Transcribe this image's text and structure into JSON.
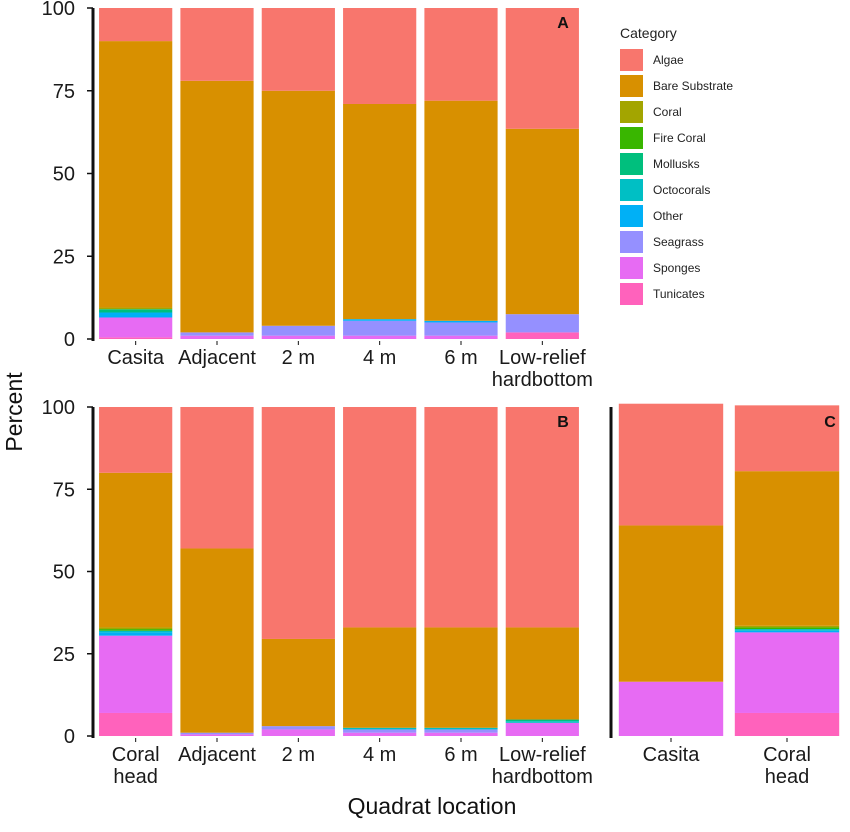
{
  "xlabel": "Quadrat location",
  "ylabel": "Percent",
  "legend": {
    "title": "Category",
    "entries": [
      {
        "name": "Algae",
        "color": "#F8766D"
      },
      {
        "name": "Bare Substrate",
        "color": "#D89000"
      },
      {
        "name": "Coral",
        "color": "#A3A500"
      },
      {
        "name": "Fire Coral",
        "color": "#39B600"
      },
      {
        "name": "Mollusks",
        "color": "#00BF7D"
      },
      {
        "name": "Octocorals",
        "color": "#00BFC4"
      },
      {
        "name": "Other",
        "color": "#00B0F6"
      },
      {
        "name": "Seagrass",
        "color": "#9590FF"
      },
      {
        "name": "Sponges",
        "color": "#E76BF3"
      },
      {
        "name": "Tunicates",
        "color": "#FF62BC"
      }
    ]
  },
  "chart_data": [
    {
      "type": "bar",
      "stacked": true,
      "panel": "A",
      "ylim": [
        0,
        100
      ],
      "yticks": [
        0,
        25,
        50,
        75,
        100
      ],
      "categories": [
        [
          "Casita"
        ],
        [
          "Adjacent"
        ],
        [
          "2 m"
        ],
        [
          "4 m"
        ],
        [
          "6 m"
        ],
        [
          "Low-relief",
          "hardbottom"
        ]
      ],
      "series": [
        {
          "name": "Tunicates",
          "values": [
            0.5,
            0,
            0,
            0,
            0,
            2
          ]
        },
        {
          "name": "Sponges",
          "values": [
            6,
            1,
            1,
            1,
            1,
            0
          ]
        },
        {
          "name": "Seagrass",
          "values": [
            0,
            1,
            3,
            4.5,
            4,
            5.5
          ]
        },
        {
          "name": "Other",
          "values": [
            1.5,
            0,
            0,
            0.5,
            0.5,
            0
          ]
        },
        {
          "name": "Octocorals",
          "values": [
            0,
            0,
            0,
            0,
            0,
            0
          ]
        },
        {
          "name": "Mollusks",
          "values": [
            1,
            0,
            0,
            0,
            0,
            0
          ]
        },
        {
          "name": "Fire Coral",
          "values": [
            0,
            0,
            0,
            0,
            0,
            0
          ]
        },
        {
          "name": "Coral",
          "values": [
            0.5,
            0,
            0,
            0,
            0,
            0
          ]
        },
        {
          "name": "Bare Substrate",
          "values": [
            80.5,
            76,
            71,
            65,
            66.5,
            56
          ]
        },
        {
          "name": "Algae",
          "values": [
            10,
            22,
            25,
            29,
            28,
            36.5
          ]
        }
      ]
    },
    {
      "type": "bar",
      "stacked": true,
      "panel": "B",
      "ylim": [
        0,
        100
      ],
      "yticks": [
        0,
        25,
        50,
        75,
        100
      ],
      "categories": [
        [
          "Coral",
          "head"
        ],
        [
          "Adjacent"
        ],
        [
          "2 m"
        ],
        [
          "4 m"
        ],
        [
          "6 m"
        ],
        [
          "Low-relief",
          "hardbottom"
        ]
      ],
      "series": [
        {
          "name": "Tunicates",
          "values": [
            7,
            0,
            0,
            0,
            0,
            0
          ]
        },
        {
          "name": "Sponges",
          "values": [
            23.5,
            0.5,
            2,
            1,
            1,
            4
          ]
        },
        {
          "name": "Seagrass",
          "values": [
            0,
            0.5,
            1,
            1,
            1,
            0
          ]
        },
        {
          "name": "Other",
          "values": [
            1,
            0,
            0,
            0,
            0,
            0
          ]
        },
        {
          "name": "Octocorals",
          "values": [
            0.5,
            0,
            0,
            0.5,
            0.5,
            0.5
          ]
        },
        {
          "name": "Mollusks",
          "values": [
            0,
            0,
            0,
            0,
            0,
            0.5
          ]
        },
        {
          "name": "Fire Coral",
          "values": [
            0.5,
            0,
            0,
            0,
            0,
            0
          ]
        },
        {
          "name": "Coral",
          "values": [
            0.5,
            0,
            0,
            0,
            0,
            0
          ]
        },
        {
          "name": "Bare Substrate",
          "values": [
            47,
            56,
            26.5,
            30.5,
            30.5,
            28
          ]
        },
        {
          "name": "Algae",
          "values": [
            20,
            43,
            70.5,
            67,
            67,
            67
          ]
        }
      ]
    },
    {
      "type": "bar",
      "stacked": true,
      "panel": "C",
      "ylim": [
        0,
        100
      ],
      "yticks": [
        0,
        25,
        50,
        75,
        100
      ],
      "categories": [
        [
          "Casita"
        ],
        [
          "Coral",
          "head"
        ]
      ],
      "series": [
        {
          "name": "Tunicates",
          "values": [
            0,
            7
          ]
        },
        {
          "name": "Sponges",
          "values": [
            16.5,
            24.5
          ]
        },
        {
          "name": "Seagrass",
          "values": [
            0,
            0
          ]
        },
        {
          "name": "Other",
          "values": [
            0,
            0.5
          ]
        },
        {
          "name": "Octocorals",
          "values": [
            0,
            0.5
          ]
        },
        {
          "name": "Mollusks",
          "values": [
            0,
            0
          ]
        },
        {
          "name": "Fire Coral",
          "values": [
            0,
            0.5
          ]
        },
        {
          "name": "Coral",
          "values": [
            0,
            0.5
          ]
        },
        {
          "name": "Bare Substrate",
          "values": [
            47.5,
            47
          ]
        },
        {
          "name": "Algae",
          "values": [
            37,
            20
          ]
        }
      ]
    }
  ]
}
